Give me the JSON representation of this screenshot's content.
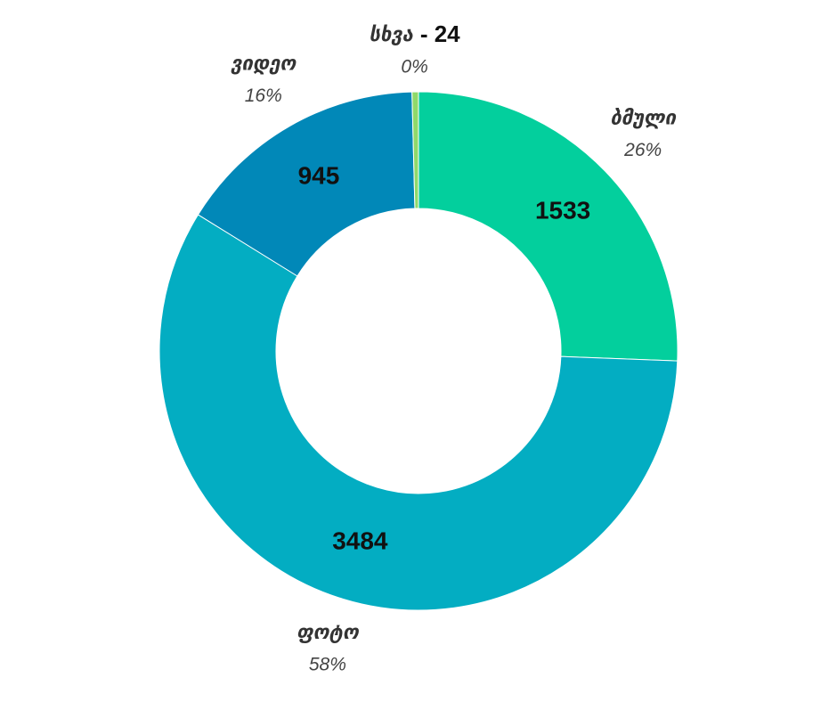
{
  "chart_data": {
    "type": "donut",
    "categories": [
      "ბმული",
      "ფოტო",
      "ვიდეო",
      "სხვა"
    ],
    "values": [
      1533,
      3484,
      945,
      24
    ],
    "value_labels": [
      "1533",
      "3484",
      "945",
      "- 24"
    ],
    "percent_labels": [
      "26%",
      "58%",
      "16%",
      "0%"
    ],
    "colors": [
      "#03cf9d",
      "#03adc2",
      "#0188b8",
      "#8fd96a"
    ]
  }
}
